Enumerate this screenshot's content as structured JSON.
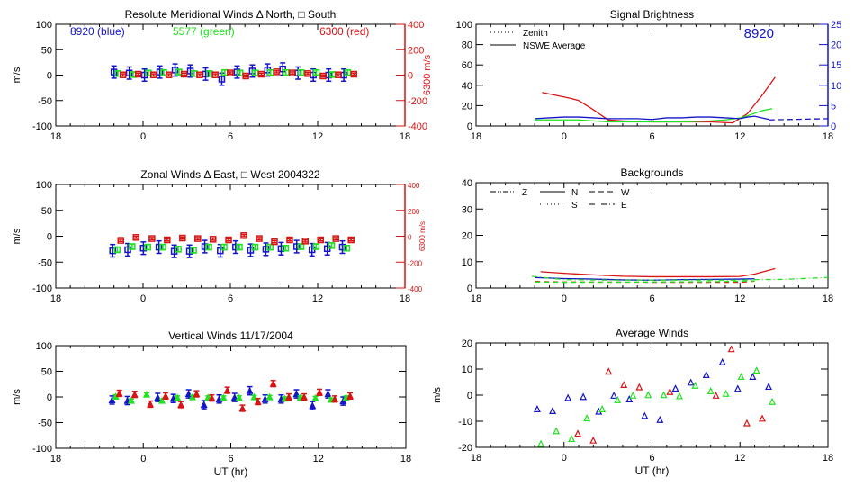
{
  "colors": {
    "blue": "#1414c8",
    "green": "#22e022",
    "red": "#d81414",
    "axis": "#000000"
  },
  "chart_data": [
    {
      "type": "scatter",
      "title": "Resolute Meridional Winds Δ North, □ South",
      "xlabel": "",
      "ylabel": "m/s",
      "xlim": [
        -6,
        18
      ],
      "xtick_values": [
        -6,
        0,
        6,
        12,
        18
      ],
      "xticks": [
        "18",
        "0",
        "6",
        "12",
        "18"
      ],
      "ylim": [
        -100,
        100
      ],
      "yticks": [
        "-100",
        "-50",
        "0",
        "50",
        "100"
      ],
      "y2": {
        "label": "6300 m/s",
        "lim": [
          -400,
          400
        ],
        "ticks": [
          "-400",
          "-200",
          "0",
          "200",
          "400"
        ],
        "color": "#d81414"
      },
      "annotations": [
        {
          "text": "8920 (blue)",
          "color": "#1414c8"
        },
        {
          "text": "5577 (green)",
          "color": "#22e022"
        },
        {
          "text": "6300 (red)",
          "color": "#d81414"
        }
      ],
      "series": [
        {
          "name": "8920",
          "color": "#1414c8",
          "marker": "square",
          "err": 12,
          "axis": "left",
          "x": [
            -2.0,
            -0.95,
            0.1,
            1.15,
            2.2,
            3.25,
            4.3,
            5.41,
            6.46,
            7.51,
            8.56,
            9.6,
            10.65,
            11.7,
            12.76,
            13.8
          ],
          "y": [
            6,
            4,
            0,
            6,
            10,
            8,
            2,
            -8,
            6,
            8,
            10,
            12,
            4,
            0,
            0,
            0
          ]
        },
        {
          "name": "5577",
          "color": "#22e022",
          "marker": "square",
          "err": 5,
          "axis": "left",
          "x": [
            -1.73,
            -0.68,
            0.37,
            1.42,
            2.47,
            3.52,
            4.57,
            5.62,
            6.67,
            7.72,
            8.77,
            9.82,
            10.87,
            11.91,
            13.02,
            14.07
          ],
          "y": [
            3,
            1,
            4,
            5,
            6,
            3,
            3,
            5,
            4,
            4,
            5,
            5,
            5,
            5,
            1,
            5
          ]
        },
        {
          "name": "6300",
          "color": "#d81414",
          "marker": "square",
          "err": 8,
          "axis": "right",
          "x": [
            -1.38,
            -0.33,
            0.72,
            1.77,
            2.82,
            3.89,
            4.96,
            5.99,
            7.06,
            8.13,
            9.18,
            10.25,
            11.32,
            12.37,
            13.42,
            14.49
          ],
          "y": [
            2,
            7,
            2,
            2,
            7,
            2,
            2,
            17,
            -7,
            7,
            26,
            17,
            12,
            -7,
            2,
            7
          ]
        }
      ]
    },
    {
      "type": "line",
      "title": "Signal Brightness",
      "xlabel": "",
      "ylabel": "",
      "xlim": [
        -6,
        18
      ],
      "xtick_values": [
        -6,
        0,
        6,
        12,
        18
      ],
      "xticks": [
        "18",
        "0",
        "6",
        "12",
        "18"
      ],
      "ylim": [
        0,
        100
      ],
      "yticks": [
        "0",
        "20",
        "40",
        "60",
        "80",
        "100"
      ],
      "y2": {
        "label": "",
        "lim": [
          0,
          25
        ],
        "ticks": [
          "0",
          "5",
          "10",
          "15",
          "20",
          "25"
        ],
        "color": "#1414c8"
      },
      "annotations": [
        {
          "text": "8920",
          "color": "#1414c8"
        }
      ],
      "legend": [
        {
          "label": "Zenith",
          "style": "dotted"
        },
        {
          "label": "NSWE Average",
          "style": "solid"
        }
      ],
      "series": [
        {
          "name": "6300",
          "color": "#d81414",
          "style": "solid",
          "axis": "left",
          "x": [
            -1.5,
            -0.5,
            0.5,
            1,
            2,
            3,
            4,
            6,
            8,
            10,
            11.5,
            12.5,
            13.5,
            14.4
          ],
          "y": [
            33,
            30,
            27,
            25,
            16,
            6,
            5,
            4,
            4,
            4,
            3,
            12,
            30,
            48
          ]
        },
        {
          "name": "5577",
          "color": "#22e022",
          "style": "solid",
          "axis": "left",
          "x": [
            -2,
            -1,
            0,
            1,
            2,
            3,
            4,
            6,
            8,
            10,
            11,
            12,
            12.5,
            13.5,
            14.2
          ],
          "y": [
            6,
            6,
            6,
            6,
            5,
            4,
            4,
            4,
            4,
            5,
            6,
            8,
            10,
            15,
            17
          ]
        },
        {
          "name": "8920",
          "color": "#1414c8",
          "style": "solid",
          "axis": "right",
          "x": [
            -2,
            -1,
            0,
            1,
            2,
            3,
            4,
            5,
            6,
            7,
            8,
            9,
            10,
            11,
            12,
            12.5,
            13,
            13.5,
            14
          ],
          "y": [
            1.8,
            2,
            2.2,
            2.2,
            2,
            1.8,
            1.8,
            1.8,
            1.6,
            2,
            2,
            2.2,
            2.2,
            2,
            1.8,
            2.2,
            2.4,
            2,
            1.6
          ]
        },
        {
          "name": "8920 zenith",
          "color": "#1414c8",
          "style": "dashed",
          "axis": "right",
          "x": [
            14,
            18
          ],
          "y": [
            1.5,
            1.8
          ]
        }
      ]
    },
    {
      "type": "scatter",
      "title": "Zonal Winds Δ East, □ West 2004322",
      "xlabel": "",
      "ylabel": "m/s",
      "xlim": [
        -6,
        18
      ],
      "xtick_values": [
        -6,
        0,
        6,
        12,
        18
      ],
      "xticks": [
        "18",
        "0",
        "6",
        "12",
        "18"
      ],
      "ylim": [
        -100,
        100
      ],
      "yticks": [
        "-100",
        "-50",
        "0",
        "50",
        "100"
      ],
      "y2": {
        "label": "6300 m/s",
        "lim": [
          -400,
          400
        ],
        "ticks": [
          "-400",
          "-200",
          "0",
          "200",
          "400"
        ],
        "color": "#d81414"
      },
      "annotations": [],
      "series": [
        {
          "name": "8920",
          "color": "#1414c8",
          "marker": "square",
          "err": 12,
          "axis": "left",
          "x": [
            -2.09,
            -1.05,
            0.02,
            1.09,
            2.14,
            3.19,
            4.24,
            5.31,
            6.36,
            7.39,
            8.44,
            9.49,
            10.56,
            11.61,
            12.66,
            13.7
          ],
          "y": [
            -28,
            -26,
            -23,
            -21,
            -29,
            -29,
            -20,
            -28,
            -21,
            -27,
            -25,
            -24,
            -20,
            -26,
            -24,
            -21
          ]
        },
        {
          "name": "5577",
          "color": "#22e022",
          "marker": "square",
          "err": 5,
          "axis": "left",
          "x": [
            -1.78,
            -0.75,
            0.32,
            1.36,
            2.42,
            3.47,
            4.52,
            5.57,
            6.62,
            7.7,
            8.74,
            9.8,
            10.86,
            11.9,
            12.96,
            14.0
          ],
          "y": [
            -26,
            -20,
            -21,
            -21,
            -25,
            -27,
            -21,
            -21,
            -21,
            -21,
            -21,
            -23,
            -20,
            -20,
            -18,
            -23
          ]
        },
        {
          "name": "6300",
          "color": "#d81414",
          "marker": "square",
          "err": 8,
          "axis": "right",
          "x": [
            -1.53,
            -0.48,
            0.61,
            1.66,
            2.71,
            3.76,
            4.81,
            5.88,
            6.93,
            7.98,
            9.03,
            10.08,
            11.15,
            12.2,
            13.25,
            14.3
          ],
          "y": [
            -32,
            -9,
            -18,
            -28,
            -14,
            -18,
            -23,
            -28,
            5,
            -18,
            -42,
            -28,
            -37,
            -28,
            -18,
            -28
          ]
        }
      ]
    },
    {
      "type": "line",
      "title": "Backgrounds",
      "xlabel": "",
      "ylabel": "",
      "xlim": [
        -6,
        18
      ],
      "xtick_values": [
        -6,
        0,
        6,
        12,
        18
      ],
      "xticks": [
        "18",
        "0",
        "6",
        "12",
        "18"
      ],
      "ylim": [
        0,
        40
      ],
      "yticks": [
        "0",
        "10",
        "20",
        "30",
        "40"
      ],
      "legend": [
        {
          "label": "Z",
          "style": "dashdotdot"
        },
        {
          "label": "N",
          "style": "solid"
        },
        {
          "label": "W",
          "style": "dashed"
        },
        {
          "label": "S",
          "style": "dotted"
        },
        {
          "label": "E",
          "style": "dashdot"
        }
      ],
      "series": [
        {
          "name": "6300 N",
          "color": "#d81414",
          "style": "solid",
          "axis": "left",
          "x": [
            -1.6,
            0,
            2,
            4,
            6,
            8,
            10,
            12,
            13,
            14.4
          ],
          "y": [
            6.2,
            5.6,
            5,
            4.5,
            4.3,
            4.3,
            4.3,
            4.4,
            5.3,
            7.4
          ]
        },
        {
          "name": "6300 W",
          "color": "#d81414",
          "style": "dashed",
          "axis": "left",
          "x": [
            -2,
            0,
            6,
            12,
            13
          ],
          "y": [
            2.5,
            2.3,
            2.2,
            2.2,
            2.6
          ]
        },
        {
          "name": "8920",
          "color": "#1414c8",
          "style": "solid",
          "axis": "left",
          "x": [
            -2,
            0,
            2,
            4,
            6,
            8,
            10,
            12,
            13
          ],
          "y": [
            4,
            3.6,
            3.4,
            3.1,
            3,
            3.2,
            3.3,
            3.4,
            3.5
          ]
        },
        {
          "name": "5577 E",
          "color": "#22e022",
          "style": "dashdot",
          "axis": "left",
          "x": [
            -2.2,
            0,
            3,
            6,
            9,
            12,
            13,
            15,
            18
          ],
          "y": [
            4.5,
            3.2,
            3,
            3,
            3,
            3,
            3.2,
            3.3,
            4
          ]
        },
        {
          "name": "5577 W",
          "color": "#22e022",
          "style": "dashed",
          "axis": "left",
          "x": [
            -2,
            0,
            2,
            6,
            10,
            13
          ],
          "y": [
            2.3,
            2.2,
            2.2,
            2.3,
            2.4,
            2.7
          ]
        }
      ]
    },
    {
      "type": "scatter",
      "title": "Vertical Winds 11/17/2004",
      "xlabel": "UT (hr)",
      "ylabel": "m/s",
      "xlim": [
        -6,
        18
      ],
      "xtick_values": [
        -6,
        0,
        6,
        12,
        18
      ],
      "xticks": [
        "18",
        "0",
        "6",
        "12",
        "18"
      ],
      "ylim": [
        -100,
        100
      ],
      "yticks": [
        "-100",
        "-50",
        "0",
        "50",
        "100"
      ],
      "series": [
        {
          "name": "8920",
          "color": "#1414c8",
          "marker": "triangle",
          "err": 8,
          "axis": "left",
          "x": [
            -2.14,
            -1.09,
            0.99,
            2.06,
            3.11,
            4.16,
            5.2,
            6.26,
            7.3,
            8.35,
            9.45,
            10.5,
            11.6,
            12.66,
            13.7
          ],
          "y": [
            -6,
            -7,
            -1,
            -3,
            6,
            -15,
            -4,
            -1,
            12,
            -4,
            -4,
            6,
            -17,
            6,
            -8
          ]
        },
        {
          "name": "5577",
          "color": "#22e022",
          "marker": "triangle",
          "err": 3,
          "axis": "left",
          "x": [
            -1.89,
            -0.82,
            0.23,
            1.28,
            2.34,
            3.38,
            4.44,
            5.5,
            6.57,
            7.6,
            8.66,
            9.7,
            10.76,
            11.8,
            12.86,
            13.9
          ],
          "y": [
            1,
            -7,
            5,
            -7,
            -1,
            0,
            -1,
            -1,
            -1,
            0,
            0,
            -3,
            -1,
            -2,
            -5,
            -1
          ]
        },
        {
          "name": "6300",
          "color": "#d81414",
          "marker": "triangle",
          "err": 6,
          "axis": "left",
          "x": [
            -1.64,
            -0.59,
            0.48,
            1.53,
            2.58,
            3.65,
            4.7,
            5.76,
            6.8,
            7.86,
            8.91,
            9.98,
            11.03,
            12.08,
            13.13,
            14.18
          ],
          "y": [
            7,
            5,
            -14,
            2,
            -15,
            6,
            -2,
            13,
            -22,
            -9,
            26,
            0,
            0,
            9,
            -4,
            2
          ]
        }
      ]
    },
    {
      "type": "scatter",
      "title": "Average Winds",
      "xlabel": "UT (hr)",
      "ylabel": "m/s",
      "xlim": [
        -6,
        18
      ],
      "xtick_values": [
        -6,
        0,
        6,
        12,
        18
      ],
      "xticks": [
        "18",
        "0",
        "6",
        "12",
        "18"
      ],
      "ylim": [
        -20,
        20
      ],
      "yticks": [
        "-20",
        "-10",
        "0",
        "10",
        "20"
      ],
      "series": [
        {
          "name": "8920",
          "color": "#1414c8",
          "marker": "triangle-open",
          "err": 0,
          "axis": "left",
          "x": [
            -1.83,
            -0.78,
            0.27,
            1.31,
            2.36,
            3.4,
            4.45,
            5.5,
            6.54,
            7.6,
            8.65,
            9.7,
            10.8,
            11.85,
            12.87,
            13.95
          ],
          "y": [
            -5.3,
            -6,
            -1,
            -0.6,
            -6.2,
            -0.1,
            -1.5,
            -7.9,
            -9.4,
            2.6,
            4.9,
            7.8,
            12.7,
            2.5,
            7.1,
            3.3
          ]
        },
        {
          "name": "5577",
          "color": "#22e022",
          "marker": "triangle-open",
          "err": 0,
          "axis": "left",
          "x": [
            -1.58,
            -0.53,
            0.51,
            1.56,
            2.6,
            3.65,
            4.7,
            5.74,
            6.8,
            7.87,
            8.94,
            10.0,
            11.04,
            12.08,
            13.13,
            14.2
          ],
          "y": [
            -18.6,
            -13.7,
            -16.7,
            -8.8,
            -5.3,
            -1.8,
            -0.1,
            0.1,
            0.1,
            -0.3,
            3.7,
            1.6,
            0.6,
            7.1,
            9.5,
            -2.5
          ]
        },
        {
          "name": "6300",
          "color": "#d81414",
          "marker": "triangle-open",
          "err": 0,
          "axis": "left",
          "x": [
            0.94,
            1.99,
            3.04,
            4.08,
            5.13,
            7.22,
            10.36,
            11.41,
            12.47,
            13.52
          ],
          "y": [
            -14.7,
            -17.3,
            9.1,
            4,
            3.1,
            1.3,
            -0.1,
            17.7,
            -10.7,
            -8.9
          ]
        }
      ]
    }
  ]
}
